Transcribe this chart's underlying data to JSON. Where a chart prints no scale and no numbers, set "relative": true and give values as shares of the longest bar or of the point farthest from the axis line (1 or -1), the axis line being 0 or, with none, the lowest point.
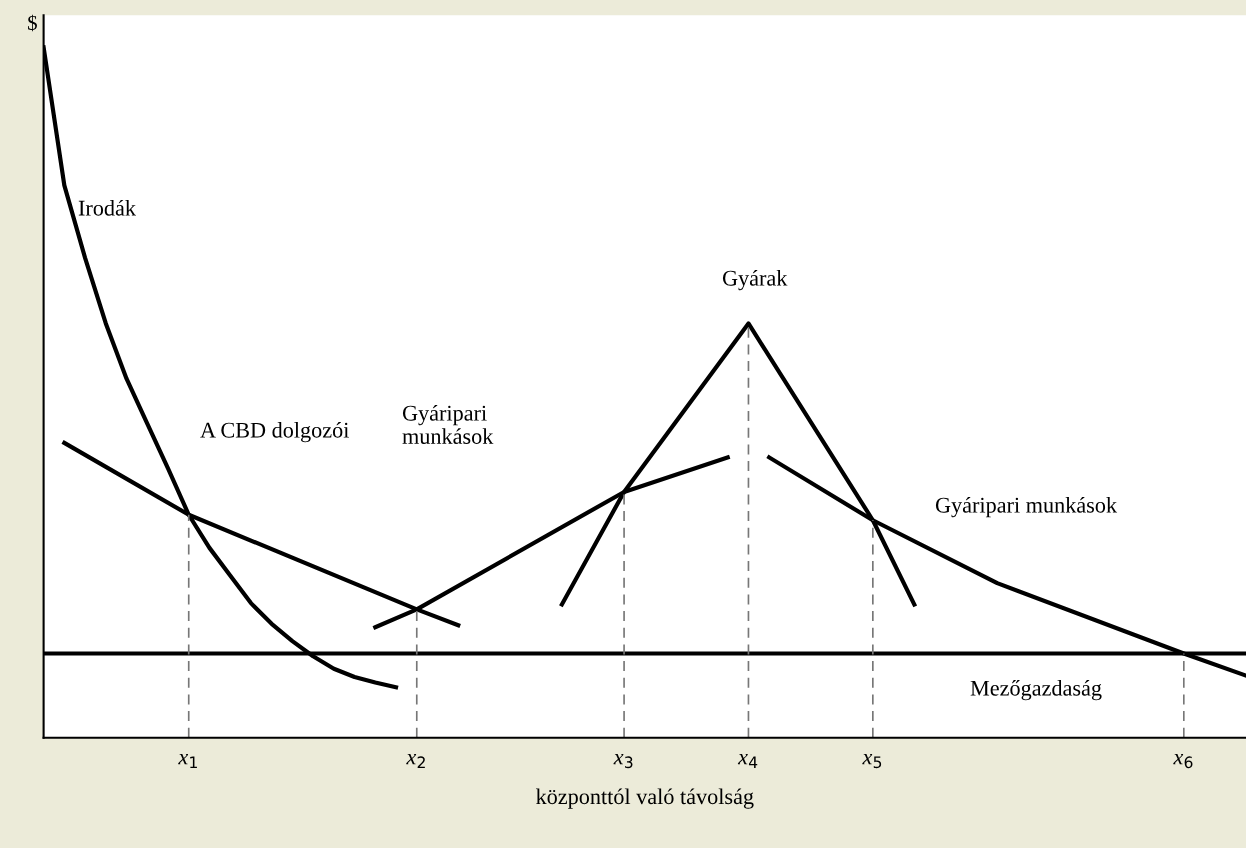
{
  "chart_data": {
    "type": "line",
    "relative": true,
    "xlabel": "központtól való távolság",
    "ylabel": "$",
    "categories": [
      null,
      null,
      null,
      null,
      null,
      null,
      null,
      "x$_{1}$",
      null,
      null,
      null,
      null,
      null,
      null,
      null,
      null,
      null,
      null,
      "x$_{2}$",
      null,
      null,
      null,
      null,
      null,
      null,
      null,
      null,
      null,
      "x$_{3}$",
      null,
      null,
      null,
      null,
      null,
      "x$_{4}$",
      null,
      null,
      null,
      null,
      null,
      "x$_{5}$",
      null,
      null,
      null,
      null,
      null,
      null,
      null,
      null,
      null,
      null,
      null,
      null,
      null,
      null,
      "x$_{6}$",
      null,
      null,
      null
    ],
    "marker": "none",
    "series": [
      {
        "color": "#000000",
        "line_style": "solid",
        "values": [
          1.0,
          0.8,
          0.695,
          0.6,
          0.52,
          0.455,
          0.39,
          0.323,
          0.275,
          0.235,
          0.195,
          0.165,
          0.14,
          0.118,
          0.1,
          0.088,
          0.08,
          0.073,
          null,
          null,
          null,
          null,
          null,
          null,
          null,
          null,
          null,
          null,
          null,
          null,
          null,
          null,
          null,
          null,
          null,
          null,
          null,
          null,
          null,
          null,
          null,
          null,
          null,
          null,
          null,
          null,
          null,
          null,
          null,
          null,
          null,
          null,
          null,
          null,
          null,
          null,
          null,
          null,
          null
        ]
      },
      {
        "color": "#000000",
        "line_style": "solid",
        "values": [
          null,
          0.427,
          null,
          null,
          null,
          null,
          null,
          0.323,
          null,
          null,
          null,
          null,
          null,
          null,
          null,
          null,
          null,
          null,
          0.186,
          null,
          0.163,
          null,
          null,
          null,
          null,
          null,
          null,
          null,
          null,
          null,
          null,
          null,
          null,
          null,
          null,
          null,
          null,
          null,
          null,
          null,
          null,
          null,
          null,
          null,
          null,
          null,
          null,
          null,
          null,
          null,
          null,
          null,
          null,
          null,
          null,
          null,
          null,
          null,
          null
        ]
      },
      {
        "color": "#000000",
        "line_style": "solid",
        "values": [
          null,
          null,
          null,
          null,
          null,
          null,
          null,
          null,
          null,
          null,
          null,
          null,
          null,
          null,
          null,
          null,
          0.16,
          null,
          0.186,
          null,
          null,
          null,
          null,
          null,
          null,
          null,
          null,
          null,
          0.356,
          null,
          null,
          null,
          null,
          0.406,
          null,
          null,
          null,
          null,
          null,
          null,
          null,
          null,
          null,
          null,
          null,
          null,
          null,
          null,
          null,
          null,
          null,
          null,
          null,
          null,
          null,
          null,
          null,
          null,
          null
        ]
      },
      {
        "color": "#000000",
        "line_style": "solid",
        "values": [
          null,
          null,
          null,
          null,
          null,
          null,
          null,
          null,
          null,
          null,
          null,
          null,
          null,
          null,
          null,
          null,
          null,
          null,
          null,
          null,
          null,
          null,
          null,
          null,
          null,
          0.193,
          null,
          null,
          0.356,
          null,
          null,
          null,
          null,
          null,
          0.6,
          null,
          null,
          null,
          null,
          null,
          0.315,
          null,
          0.193,
          null,
          null,
          null,
          null,
          null,
          null,
          null,
          null,
          null,
          null,
          null,
          null,
          null,
          null,
          null,
          null
        ]
      },
      {
        "color": "#000000",
        "line_style": "solid",
        "values": [
          null,
          null,
          null,
          null,
          null,
          null,
          null,
          null,
          null,
          null,
          null,
          null,
          null,
          null,
          null,
          null,
          null,
          null,
          null,
          null,
          null,
          null,
          null,
          null,
          null,
          null,
          null,
          null,
          null,
          null,
          null,
          null,
          null,
          null,
          null,
          0.406,
          null,
          null,
          null,
          null,
          0.315,
          null,
          null,
          null,
          null,
          null,
          0.224,
          null,
          null,
          null,
          null,
          null,
          null,
          null,
          null,
          0.122,
          null,
          null,
          0.09
        ]
      },
      {
        "color": "#000000",
        "line_style": "solid",
        "values": [
          0.122,
          null,
          null,
          null,
          null,
          null,
          null,
          null,
          null,
          null,
          null,
          null,
          null,
          null,
          null,
          null,
          null,
          null,
          null,
          null,
          null,
          null,
          null,
          null,
          null,
          null,
          null,
          null,
          null,
          null,
          null,
          null,
          null,
          null,
          null,
          null,
          null,
          null,
          null,
          null,
          null,
          null,
          null,
          null,
          null,
          null,
          null,
          null,
          null,
          null,
          null,
          null,
          null,
          null,
          null,
          0.122,
          null,
          null,
          0.122
        ]
      }
    ],
    "ref_lines": [
      {
        "axis": "x",
        "value": "x$_{1}$",
        "color": "#777777",
        "line_style": "dashed"
      },
      {
        "axis": "x",
        "value": "x$_{2}$",
        "color": "#777777",
        "line_style": "dashed"
      },
      {
        "axis": "x",
        "value": "x$_{3}$",
        "color": "#777777",
        "line_style": "dashed"
      },
      {
        "axis": "x",
        "value": "x$_{4}$",
        "color": "#777777",
        "line_style": "dashed"
      },
      {
        "axis": "x",
        "value": "x$_{5}$",
        "color": "#777777",
        "line_style": "dashed"
      },
      {
        "axis": "x",
        "value": "x$_{6}$",
        "color": "#777777",
        "line_style": "dashed"
      }
    ],
    "annotations": [
      "Irodák",
      "A CBD dolgozói",
      "Gyáripari\nmunkások",
      "Gyárak",
      "Gyáripari munkások",
      "Mezőgazdaság"
    ]
  }
}
